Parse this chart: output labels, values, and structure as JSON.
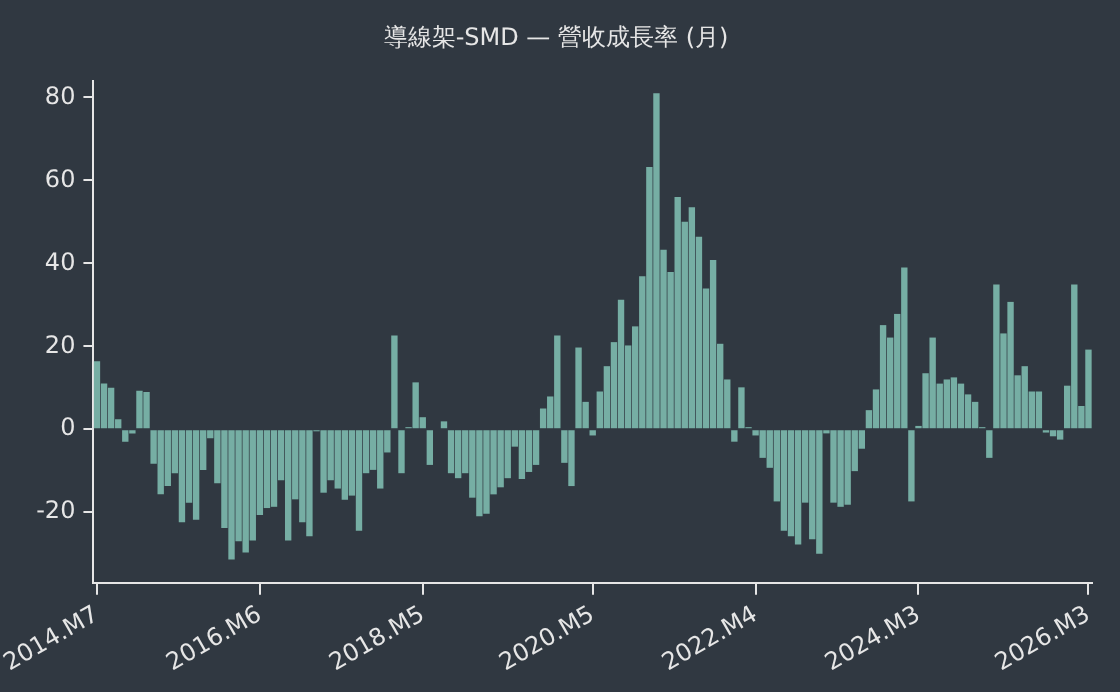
{
  "chart_data": {
    "type": "bar",
    "title": "導線架-SMD — 營收成長率 (月)",
    "categories": [
      "2014.M7",
      null,
      null,
      null,
      null,
      null,
      null,
      null,
      null,
      null,
      null,
      null,
      null,
      null,
      null,
      null,
      null,
      null,
      null,
      null,
      null,
      null,
      null,
      "2016.M6",
      null,
      null,
      null,
      null,
      null,
      null,
      null,
      null,
      null,
      null,
      null,
      null,
      null,
      null,
      null,
      null,
      null,
      null,
      null,
      null,
      null,
      null,
      "2018.M5",
      null,
      null,
      null,
      null,
      null,
      null,
      null,
      null,
      null,
      null,
      null,
      null,
      null,
      null,
      null,
      null,
      null,
      null,
      null,
      null,
      null,
      null,
      null,
      "2020.M5",
      null,
      null,
      null,
      null,
      null,
      null,
      null,
      null,
      null,
      null,
      null,
      null,
      null,
      null,
      null,
      null,
      null,
      null,
      null,
      null,
      null,
      null,
      "2022.M4",
      null,
      null,
      null,
      null,
      null,
      null,
      null,
      null,
      null,
      null,
      null,
      null,
      null,
      null,
      null,
      null,
      null,
      null,
      null,
      null,
      null,
      null,
      "2024.M3",
      null,
      null,
      null,
      null,
      null,
      null,
      null,
      null,
      null,
      null,
      null,
      null,
      null,
      null,
      null,
      null,
      null,
      null,
      null,
      null,
      null,
      null,
      null,
      "2026.M3"
    ],
    "values": [
      16.4,
      11,
      10,
      2.4,
      -3,
      -1,
      9.3,
      9,
      -8.3,
      -15.7,
      -13.7,
      -10.6,
      -22.4,
      -17.7,
      -21.8,
      -9.8,
      -2.2,
      -13,
      -23.8,
      -31.4,
      -27,
      -29.7,
      -26.8,
      -20.7,
      -19,
      -18.7,
      -12.3,
      -26.8,
      -16.9,
      -22.4,
      -25.8,
      -0.5,
      -15.3,
      -12.3,
      -14.3,
      -17,
      -16,
      -24.5,
      -10.6,
      -9.8,
      -14.3,
      -5.6,
      22.6,
      -10.6,
      0.5,
      11.3,
      2.9,
      -8.6,
      null,
      1.9,
      -10.6,
      -11.8,
      -10.6,
      -16.5,
      -21,
      -20.4,
      -15.7,
      -14,
      -11.8,
      -4.2,
      -12,
      -10.3,
      -8.6,
      5,
      7.9,
      22.6,
      -8.1,
      -13.7,
      19.7,
      6.6,
      -1.5,
      9.1,
      15.2,
      21,
      31.2,
      20.2,
      24.8,
      36.9,
      63.2,
      81,
      43.3,
      37.9,
      56,
      50,
      53.5,
      46.4,
      33.9,
      40.8,
      20.6,
      12,
      -3,
      10.1,
      0.5,
      -1.5,
      -6.9,
      -9.3,
      -17.4,
      -24.5,
      -25.8,
      -27.8,
      -17.7,
      -26.5,
      -30,
      -1,
      -17.7,
      -18.7,
      -18.2,
      -10.1,
      -4.7,
      4.6,
      9.6,
      25.1,
      22.1,
      27.8,
      39,
      -17.4,
      0.8,
      13.5,
      22.1,
      11,
      12,
      12.5,
      11,
      8.4,
      6.6,
      0.5,
      -6.9,
      34.9,
      23.1,
      30.7,
      13,
      15.2,
      9.1,
      9.1,
      -0.8,
      -1.7,
      -2.5,
      10.5,
      34.9,
      5.6,
      19.2
    ],
    "color": "#76aea4",
    "ylim": [
      -37,
      84
    ],
    "yticks": [
      -20,
      0,
      20,
      40,
      60,
      80
    ],
    "grid": false,
    "legend": false
  }
}
